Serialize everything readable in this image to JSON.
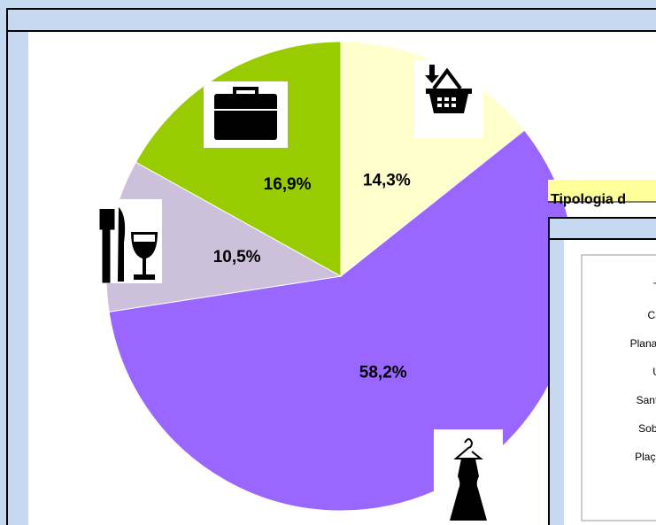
{
  "chart_data": {
    "type": "pie",
    "categories": [
      "Alimentació",
      "Equipament personal",
      "Restauració",
      "Serveis"
    ],
    "values": [
      14.3,
      58.2,
      10.5,
      16.9
    ],
    "value_labels": [
      "14,3%",
      "58,2%",
      "10,5%",
      "16,9%"
    ],
    "colors": [
      "#ffffcc",
      "#9966ff",
      "#ccc0da",
      "#99cc00"
    ]
  },
  "side_chart": {
    "title": "Tipologia d",
    "labels": [
      "T",
      "Ca",
      "Plana de l",
      "U",
      "Sant Mi",
      "Sobrer",
      "Plaça M"
    ]
  }
}
